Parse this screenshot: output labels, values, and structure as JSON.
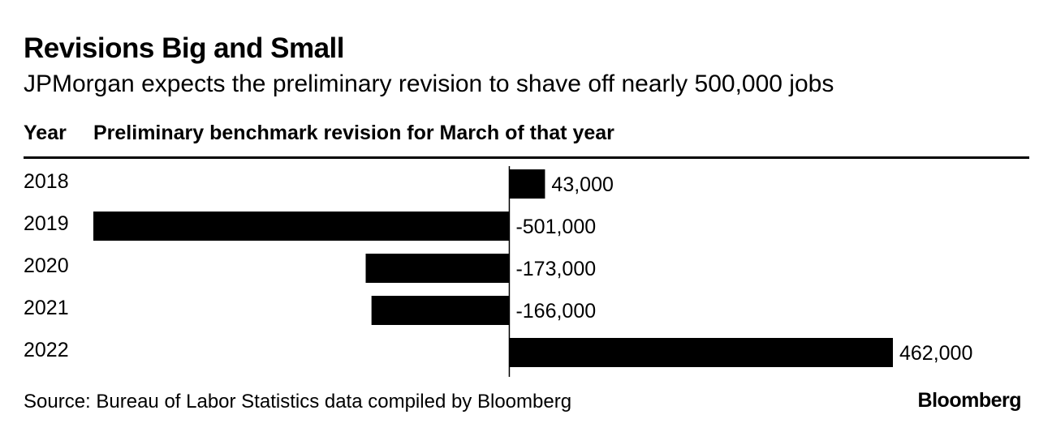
{
  "chart_data": {
    "type": "bar",
    "orientation": "horizontal",
    "title": "Revisions Big and Small",
    "subtitle": "JPMorgan expects the preliminary revision to shave off nearly 500,000 jobs",
    "column_headers": {
      "category": "Year",
      "value": "Preliminary benchmark revision for March of that year"
    },
    "categories": [
      "2018",
      "2019",
      "2020",
      "2021",
      "2022"
    ],
    "values": [
      43000,
      -501000,
      -173000,
      -166000,
      462000
    ],
    "value_labels": [
      "43,000",
      "-501,000",
      "-173,000",
      "-166,000",
      "462,000"
    ],
    "xlim": [
      -501000,
      462000
    ],
    "bar_color": "#000000"
  },
  "footer": {
    "source": "Source: Bureau of Labor Statistics data compiled by Bloomberg",
    "brand": "Bloomberg"
  }
}
